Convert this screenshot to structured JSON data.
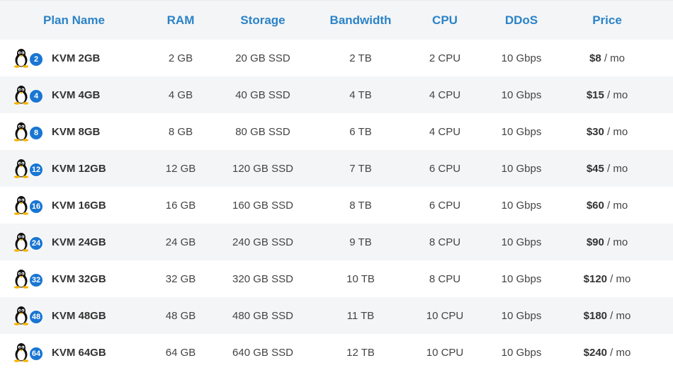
{
  "headers": {
    "plan": "Plan Name",
    "ram": "RAM",
    "storage": "Storage",
    "bandwidth": "Bandwidth",
    "cpu": "CPU",
    "ddos": "DDoS",
    "price": "Price"
  },
  "icon": "linux-tux-icon",
  "colors": {
    "header_text": "#2a83c9",
    "badge": "#1976d2",
    "alt_row": "#f4f5f6"
  },
  "plans": [
    {
      "badge": "2",
      "name": "KVM 2GB",
      "ram": "2 GB",
      "storage": "20 GB SSD",
      "bandwidth": "2 TB",
      "cpu": "2 CPU",
      "ddos": "10 Gbps",
      "price": "$8",
      "unit": " / mo"
    },
    {
      "badge": "4",
      "name": "KVM 4GB",
      "ram": "4 GB",
      "storage": "40 GB SSD",
      "bandwidth": "4 TB",
      "cpu": "4 CPU",
      "ddos": "10 Gbps",
      "price": "$15",
      "unit": " / mo"
    },
    {
      "badge": "8",
      "name": "KVM 8GB",
      "ram": "8 GB",
      "storage": "80 GB SSD",
      "bandwidth": "6 TB",
      "cpu": "4 CPU",
      "ddos": "10 Gbps",
      "price": "$30",
      "unit": " / mo"
    },
    {
      "badge": "12",
      "name": "KVM 12GB",
      "ram": "12 GB",
      "storage": "120 GB SSD",
      "bandwidth": "7 TB",
      "cpu": "6 CPU",
      "ddos": "10 Gbps",
      "price": "$45",
      "unit": " / mo"
    },
    {
      "badge": "16",
      "name": "KVM 16GB",
      "ram": "16 GB",
      "storage": "160 GB SSD",
      "bandwidth": "8 TB",
      "cpu": "6 CPU",
      "ddos": "10 Gbps",
      "price": "$60",
      "unit": " / mo"
    },
    {
      "badge": "24",
      "name": "KVM 24GB",
      "ram": "24 GB",
      "storage": "240 GB SSD",
      "bandwidth": "9 TB",
      "cpu": "8 CPU",
      "ddos": "10 Gbps",
      "price": "$90",
      "unit": " / mo"
    },
    {
      "badge": "32",
      "name": "KVM 32GB",
      "ram": "32 GB",
      "storage": "320 GB SSD",
      "bandwidth": "10 TB",
      "cpu": "8 CPU",
      "ddos": "10 Gbps",
      "price": "$120",
      "unit": " / mo"
    },
    {
      "badge": "48",
      "name": "KVM 48GB",
      "ram": "48 GB",
      "storage": "480 GB SSD",
      "bandwidth": "11 TB",
      "cpu": "10 CPU",
      "ddos": "10 Gbps",
      "price": "$180",
      "unit": " / mo"
    },
    {
      "badge": "64",
      "name": "KVM 64GB",
      "ram": "64 GB",
      "storage": "640 GB SSD",
      "bandwidth": "12 TB",
      "cpu": "10 CPU",
      "ddos": "10 Gbps",
      "price": "$240",
      "unit": " / mo"
    }
  ]
}
